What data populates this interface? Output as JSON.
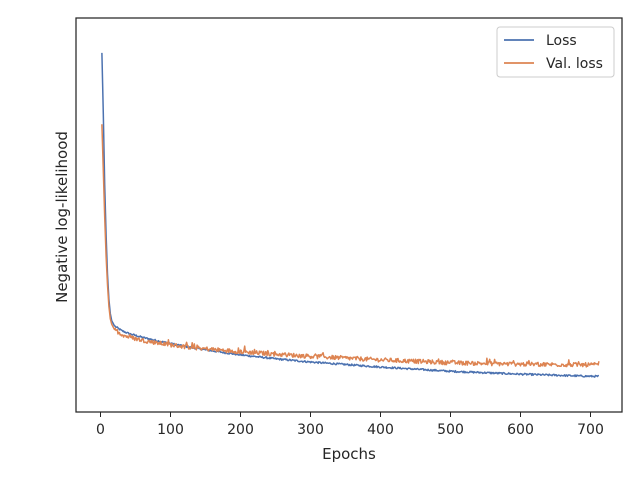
{
  "chart_data": {
    "type": "line",
    "title": "",
    "xlabel": "Epochs",
    "ylabel": "Negative log-likelihood",
    "xlim": [
      -35,
      745
    ],
    "ylim": [
      0,
      1
    ],
    "x_ticks": [
      0,
      100,
      200,
      300,
      400,
      500,
      600,
      700
    ],
    "y_ticks_shown": false,
    "grid": false,
    "legend_position": "top-right",
    "y_values_note_scale": "relative (no y tick labels printed)",
    "series": [
      {
        "name": "Loss",
        "color": "#4c72b0",
        "points": [
          [
            2,
            0.95
          ],
          [
            4,
            0.78
          ],
          [
            6,
            0.58
          ],
          [
            8,
            0.44
          ],
          [
            10,
            0.33
          ],
          [
            12,
            0.26
          ],
          [
            14,
            0.22
          ],
          [
            16,
            0.2
          ],
          [
            20,
            0.185
          ],
          [
            30,
            0.172
          ],
          [
            40,
            0.164
          ],
          [
            60,
            0.153
          ],
          [
            80,
            0.144
          ],
          [
            100,
            0.136
          ],
          [
            120,
            0.128
          ],
          [
            150,
            0.118
          ],
          [
            200,
            0.104
          ],
          [
            250,
            0.093
          ],
          [
            300,
            0.084
          ],
          [
            350,
            0.077
          ],
          [
            400,
            0.07
          ],
          [
            450,
            0.064
          ],
          [
            500,
            0.058
          ],
          [
            550,
            0.054
          ],
          [
            600,
            0.05
          ],
          [
            650,
            0.047
          ],
          [
            700,
            0.044
          ],
          [
            712,
            0.044
          ]
        ]
      },
      {
        "name": "Val. loss",
        "color": "#dd8452",
        "points": [
          [
            2,
            0.75
          ],
          [
            4,
            0.62
          ],
          [
            6,
            0.49
          ],
          [
            8,
            0.38
          ],
          [
            10,
            0.3
          ],
          [
            12,
            0.24
          ],
          [
            14,
            0.205
          ],
          [
            16,
            0.19
          ],
          [
            20,
            0.175
          ],
          [
            30,
            0.162
          ],
          [
            40,
            0.154
          ],
          [
            60,
            0.145
          ],
          [
            80,
            0.138
          ],
          [
            100,
            0.132
          ],
          [
            120,
            0.127
          ],
          [
            150,
            0.121
          ],
          [
            200,
            0.113
          ],
          [
            250,
            0.106
          ],
          [
            300,
            0.1
          ],
          [
            350,
            0.095
          ],
          [
            400,
            0.09
          ],
          [
            450,
            0.086
          ],
          [
            500,
            0.082
          ],
          [
            550,
            0.08
          ],
          [
            600,
            0.078
          ],
          [
            650,
            0.077
          ],
          [
            700,
            0.076
          ],
          [
            712,
            0.076
          ]
        ]
      }
    ]
  }
}
